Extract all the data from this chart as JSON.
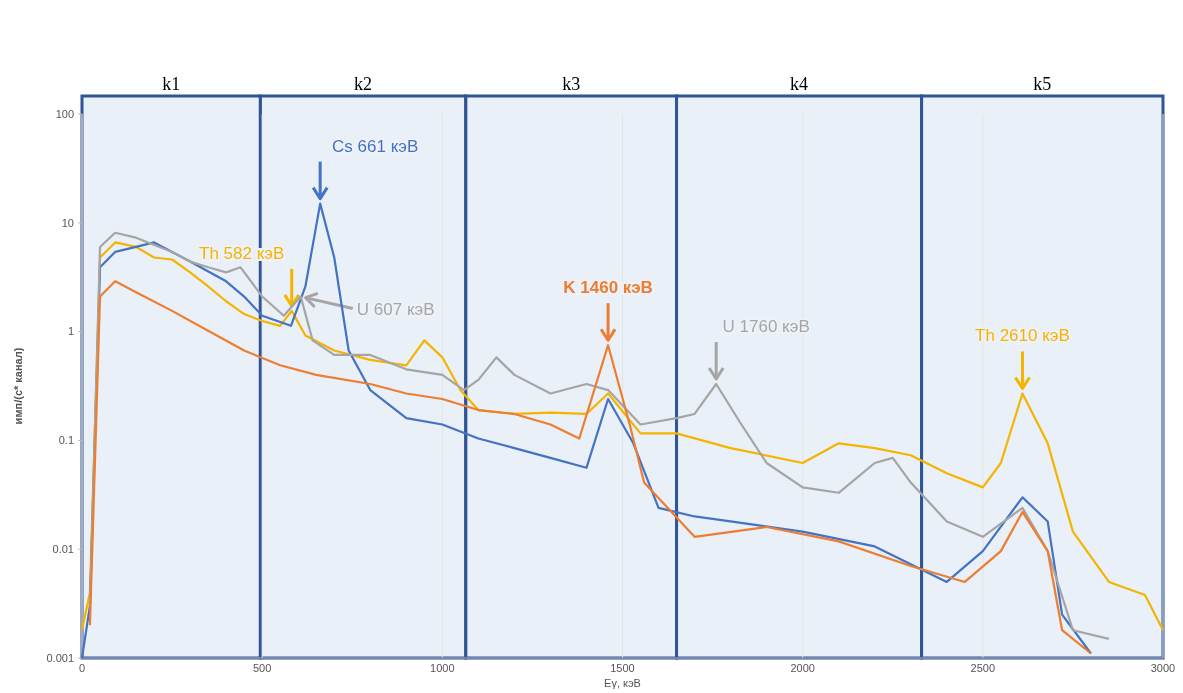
{
  "chart_data": {
    "type": "line",
    "xlabel": "Eγ, кэВ",
    "ylabel": "имп/(с* канал)",
    "log": "y",
    "grid": "x",
    "xlim": [
      0,
      3000
    ],
    "xticks": [
      0,
      500,
      1000,
      1500,
      2000,
      2500,
      3000
    ],
    "ylim": [
      0.001,
      100
    ],
    "yticks": [
      0.001,
      0.01,
      0.1,
      1,
      10,
      100
    ],
    "series": [
      {
        "color": "#f5b400",
        "x": [
          0,
          22,
          50,
          92,
          150,
          200,
          250,
          300,
          350,
          400,
          450,
          500,
          550,
          582,
          620,
          700,
          800,
          900,
          950,
          1000,
          1050,
          1100,
          1200,
          1300,
          1400,
          1460,
          1550,
          1650,
          1800,
          2000,
          2100,
          2200,
          2300,
          2400,
          2500,
          2550,
          2610,
          2680,
          2750,
          2850,
          2950,
          3000
        ],
        "values": [
          0.0018,
          0.004,
          4.8,
          6.6,
          6,
          4.8,
          4.6,
          3.5,
          2.6,
          1.9,
          1.45,
          1.25,
          1.13,
          1.55,
          0.92,
          0.67,
          0.55,
          0.49,
          0.83,
          0.58,
          0.29,
          0.19,
          0.175,
          0.18,
          0.175,
          0.27,
          0.116,
          0.116,
          0.085,
          0.062,
          0.094,
          0.085,
          0.073,
          0.05,
          0.037,
          0.062,
          0.27,
          0.094,
          0.0145,
          0.005,
          0.0038,
          0.0018
        ]
      },
      {
        "color": "#4472c4",
        "x": [
          0,
          22,
          50,
          92,
          150,
          200,
          250,
          300,
          400,
          450,
          500,
          580,
          620,
          661,
          700,
          740,
          800,
          900,
          1000,
          1100,
          1200,
          1300,
          1400,
          1460,
          1530,
          1600,
          1700,
          1800,
          2000,
          2200,
          2400,
          2500,
          2610,
          2680,
          2720,
          2800
        ],
        "values": [
          0.001,
          0.003,
          3.9,
          5.4,
          6,
          6.6,
          5.4,
          4.4,
          2.9,
          2.1,
          1.4,
          1.13,
          2.6,
          15,
          4.8,
          0.67,
          0.29,
          0.16,
          0.14,
          0.104,
          0.085,
          0.069,
          0.056,
          0.24,
          0.094,
          0.024,
          0.02,
          0.018,
          0.0145,
          0.0106,
          0.005,
          0.0096,
          0.03,
          0.018,
          0.0025,
          0.0011
        ]
      },
      {
        "color": "#a5a5a5",
        "x": [
          22,
          50,
          92,
          150,
          250,
          300,
          350,
          400,
          440,
          500,
          560,
          607,
          640,
          700,
          800,
          900,
          1000,
          1060,
          1100,
          1150,
          1200,
          1300,
          1400,
          1460,
          1550,
          1650,
          1700,
          1760,
          1830,
          1900,
          2000,
          2100,
          2200,
          2250,
          2300,
          2400,
          2500,
          2610,
          2680,
          2750,
          2850
        ],
        "values": [
          0.003,
          6,
          8.1,
          7.3,
          5.4,
          4.4,
          3.9,
          3.5,
          3.9,
          2.1,
          1.4,
          2.1,
          0.83,
          0.61,
          0.61,
          0.45,
          0.4,
          0.29,
          0.36,
          0.58,
          0.4,
          0.27,
          0.33,
          0.29,
          0.14,
          0.16,
          0.175,
          0.33,
          0.14,
          0.062,
          0.037,
          0.033,
          0.062,
          0.069,
          0.041,
          0.018,
          0.013,
          0.024,
          0.0096,
          0.0018,
          0.0015
        ]
      },
      {
        "color": "#ed7d31",
        "x": [
          22,
          50,
          92,
          150,
          250,
          350,
          450,
          550,
          650,
          800,
          900,
          1000,
          1100,
          1200,
          1300,
          1380,
          1460,
          1520,
          1560,
          1700,
          1900,
          2100,
          2300,
          2450,
          2550,
          2610,
          2680,
          2720,
          2800
        ],
        "values": [
          0.002,
          2.1,
          2.9,
          2.3,
          1.55,
          1.02,
          0.67,
          0.49,
          0.4,
          0.33,
          0.27,
          0.24,
          0.19,
          0.175,
          0.14,
          0.104,
          0.75,
          0.14,
          0.041,
          0.013,
          0.016,
          0.0118,
          0.007,
          0.005,
          0.0096,
          0.022,
          0.0096,
          0.0018,
          0.0011
        ]
      }
    ],
    "bands": [
      {
        "axis": "x",
        "from": 0,
        "to": 495,
        "label": "k1"
      },
      {
        "axis": "x",
        "from": 495,
        "to": 1065,
        "label": "k2"
      },
      {
        "axis": "x",
        "from": 1065,
        "to": 1650,
        "label": "k3"
      },
      {
        "axis": "x",
        "from": 1650,
        "to": 2330,
        "label": "k4"
      },
      {
        "axis": "x",
        "from": 2330,
        "to": 3000,
        "label": "k5"
      }
    ],
    "annotations": [
      {
        "text": "Th  582 кэВ",
        "x": 582,
        "y": 1.55
      },
      {
        "text": "Cs  661 кэВ",
        "x": 661,
        "y": 15
      },
      {
        "text": "U  607 кэВ",
        "x": 607,
        "y": 2.1
      },
      {
        "text": "K 1460 кэВ",
        "x": 1460,
        "y": 0.75
      },
      {
        "text": "U 1760 кэВ",
        "x": 1760,
        "y": 0.33
      },
      {
        "text": "Th 2610 кэВ",
        "x": 2610,
        "y": 0.27
      }
    ]
  }
}
